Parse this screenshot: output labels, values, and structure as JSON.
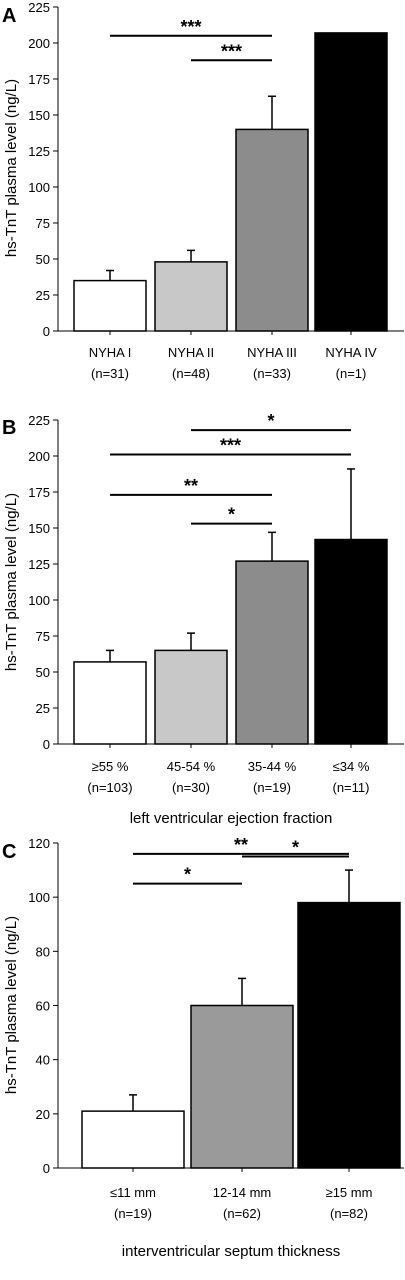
{
  "chart_data": [
    {
      "type": "bar",
      "panel_label": "A",
      "ylabel": "hs-TnT plasma level (ng/L)",
      "xlabel": "",
      "ylim": [
        0,
        225
      ],
      "yticks": [
        0,
        25,
        50,
        75,
        100,
        125,
        150,
        175,
        200,
        225
      ],
      "categories": [
        "NYHA I",
        "NYHA II",
        "NYHA III",
        "NYHA IV"
      ],
      "sublabels": [
        "(n=31)",
        "(n=48)",
        "(n=33)",
        "(n=1)"
      ],
      "values": [
        35,
        48,
        140,
        207
      ],
      "errors": [
        7,
        8,
        23,
        null
      ],
      "colors": [
        "#ffffff",
        "#c8c8c8",
        "#8c8c8c",
        "#000000"
      ],
      "significance": [
        {
          "from": 0,
          "to": 2,
          "label": "***",
          "y": 205
        },
        {
          "from": 1,
          "to": 2,
          "label": "***",
          "y": 188
        }
      ]
    },
    {
      "type": "bar",
      "panel_label": "B",
      "ylabel": "hs-TnT plasma level (ng/L)",
      "xlabel": "left ventricular ejection fraction",
      "ylim": [
        0,
        225
      ],
      "yticks": [
        0,
        25,
        50,
        75,
        100,
        125,
        150,
        175,
        200,
        225
      ],
      "categories": [
        "≥55 %",
        "45-54 %",
        "35-44 %",
        "≤34 %"
      ],
      "sublabels": [
        "(n=103)",
        "(n=30)",
        "(n=19)",
        "(n=11)"
      ],
      "values": [
        57,
        65,
        127,
        142
      ],
      "errors": [
        8,
        12,
        20,
        49
      ],
      "colors": [
        "#ffffff",
        "#c8c8c8",
        "#8c8c8c",
        "#000000"
      ],
      "significance": [
        {
          "from": 1,
          "to": 3,
          "label": "*",
          "y": 218
        },
        {
          "from": 0,
          "to": 3,
          "label": "***",
          "y": 201
        },
        {
          "from": 0,
          "to": 2,
          "label": "**",
          "y": 173
        },
        {
          "from": 1,
          "to": 2,
          "label": "*",
          "y": 153
        }
      ]
    },
    {
      "type": "bar",
      "panel_label": "C",
      "ylabel": "hs-TnT plasma level (ng/L)",
      "xlabel": "interventricular septum thickness",
      "ylim": [
        0,
        120
      ],
      "yticks": [
        0,
        20,
        40,
        60,
        80,
        100,
        120
      ],
      "categories": [
        "≤11 mm",
        "12-14 mm",
        "≥15 mm"
      ],
      "sublabels": [
        "(n=19)",
        "(n=62)",
        "(n=82)"
      ],
      "values": [
        21,
        60,
        98
      ],
      "errors": [
        6,
        10,
        12
      ],
      "colors": [
        "#ffffff",
        "#9a9a9a",
        "#000000"
      ],
      "significance": [
        {
          "from": 0,
          "to": 2,
          "label": "**",
          "y": 116
        },
        {
          "from": 1,
          "to": 2,
          "label": "*",
          "y": 115
        },
        {
          "from": 0,
          "to": 1,
          "label": "*",
          "y": 105
        }
      ]
    }
  ]
}
